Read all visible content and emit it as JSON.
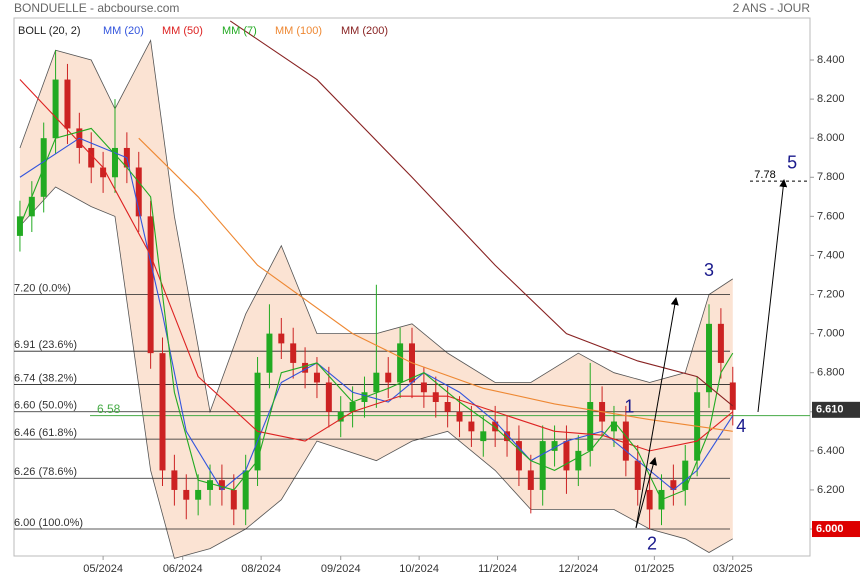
{
  "chart_data": {
    "type": "candlestick",
    "title": "BONDUELLE - abcbourse.com",
    "period": "2 ANS - JOUR",
    "xlim": [
      -0.5,
      66.5
    ],
    "xticks": [
      {
        "value": 7,
        "label": "05/2024"
      },
      {
        "value": 13.7,
        "label": "06/2024"
      },
      {
        "value": 20.3,
        "label": "08/2024"
      },
      {
        "value": 27,
        "label": "09/2024"
      },
      {
        "value": 33.6,
        "label": "10/2024"
      },
      {
        "value": 40.2,
        "label": "11/2024"
      },
      {
        "value": 47,
        "label": "12/2024"
      },
      {
        "value": 53.4,
        "label": "01/2025"
      },
      {
        "value": 60,
        "label": "03/2025"
      }
    ],
    "ylim": [
      5.862,
      8.615
    ],
    "yticks": [
      {
        "value": 6.0,
        "label": "6.000"
      },
      {
        "value": 6.2,
        "label": "6.200"
      },
      {
        "value": 6.4,
        "label": "6.400"
      },
      {
        "value": 6.6,
        "label": "6.600"
      },
      {
        "value": 6.8,
        "label": "6.800"
      },
      {
        "value": 7.0,
        "label": "7.000"
      },
      {
        "value": 7.2,
        "label": "7.200"
      },
      {
        "value": 7.4,
        "label": "7.400"
      },
      {
        "value": 7.6,
        "label": "7.600"
      },
      {
        "value": 7.8,
        "label": "7.800"
      },
      {
        "value": 8.0,
        "label": "8.000"
      },
      {
        "value": 8.2,
        "label": "8.200"
      },
      {
        "value": 8.4,
        "label": "8.400"
      }
    ],
    "up_color": "#22aa22",
    "down_color": "#cc2222",
    "candles": {
      "x": [
        0,
        1,
        2,
        3,
        4,
        5,
        6,
        7,
        8,
        9,
        10,
        11,
        12,
        13,
        14,
        15,
        16,
        17,
        18,
        19,
        20,
        21,
        22,
        23,
        24,
        25,
        26,
        27,
        28,
        29,
        30,
        31,
        32,
        33,
        34,
        35,
        36,
        37,
        38,
        39,
        40,
        41,
        42,
        43,
        44,
        45,
        46,
        47,
        48,
        49,
        50,
        51,
        52,
        53,
        54,
        55,
        56,
        57,
        58,
        59,
        60
      ],
      "open": [
        7.5,
        7.6,
        7.7,
        8.0,
        8.3,
        8.05,
        7.95,
        7.85,
        7.8,
        7.95,
        7.85,
        7.6,
        6.9,
        6.3,
        6.2,
        6.15,
        6.2,
        6.25,
        6.2,
        6.1,
        6.3,
        6.8,
        7.0,
        6.95,
        6.85,
        6.8,
        6.75,
        6.55,
        6.6,
        6.65,
        6.7,
        6.8,
        6.75,
        6.95,
        6.75,
        6.7,
        6.65,
        6.6,
        6.55,
        6.45,
        6.55,
        6.5,
        6.45,
        6.3,
        6.2,
        6.4,
        6.45,
        6.3,
        6.4,
        6.65,
        6.5,
        6.55,
        6.35,
        6.2,
        6.1,
        6.25,
        6.2,
        6.35,
        6.7,
        7.05,
        6.75
      ],
      "high": [
        7.68,
        7.78,
        8.08,
        8.45,
        8.38,
        8.13,
        8.03,
        7.93,
        8.2,
        8.03,
        7.93,
        7.68,
        6.98,
        6.38,
        6.28,
        6.28,
        6.33,
        6.33,
        6.28,
        6.38,
        6.88,
        7.15,
        7.08,
        7.03,
        6.93,
        6.88,
        6.83,
        6.68,
        6.73,
        6.78,
        7.25,
        6.88,
        7.03,
        7.03,
        6.83,
        6.78,
        6.73,
        6.68,
        6.63,
        6.58,
        6.63,
        6.58,
        6.53,
        6.38,
        6.53,
        6.53,
        6.53,
        6.48,
        6.85,
        6.73,
        6.63,
        6.63,
        6.43,
        6.28,
        6.28,
        6.33,
        6.43,
        6.78,
        7.15,
        7.13,
        6.83
      ],
      "low": [
        7.42,
        7.52,
        7.62,
        7.92,
        7.97,
        7.87,
        7.77,
        7.72,
        7.72,
        7.77,
        7.52,
        6.82,
        6.22,
        6.12,
        6.05,
        6.07,
        6.12,
        6.12,
        6.02,
        6.02,
        6.22,
        6.72,
        6.87,
        6.77,
        6.72,
        6.67,
        6.52,
        6.47,
        6.52,
        6.57,
        6.62,
        6.67,
        6.67,
        6.67,
        6.62,
        6.57,
        6.52,
        6.47,
        6.42,
        6.37,
        6.42,
        6.37,
        6.22,
        6.08,
        6.12,
        6.32,
        6.18,
        6.22,
        6.32,
        6.47,
        6.42,
        6.27,
        6.12,
        6.0,
        6.02,
        6.12,
        6.12,
        6.27,
        6.62,
        6.77,
        6.53
      ],
      "close": [
        7.6,
        7.7,
        8.0,
        8.3,
        8.05,
        7.95,
        7.85,
        7.8,
        7.95,
        7.85,
        7.6,
        6.9,
        6.3,
        6.2,
        6.15,
        6.2,
        6.25,
        6.2,
        6.1,
        6.3,
        6.8,
        7.0,
        6.95,
        6.85,
        6.8,
        6.75,
        6.6,
        6.6,
        6.65,
        6.7,
        6.8,
        6.75,
        6.95,
        6.75,
        6.7,
        6.65,
        6.6,
        6.55,
        6.5,
        6.5,
        6.5,
        6.45,
        6.3,
        6.2,
        6.45,
        6.45,
        6.3,
        6.4,
        6.65,
        6.55,
        6.55,
        6.35,
        6.2,
        6.1,
        6.2,
        6.2,
        6.35,
        6.7,
        7.05,
        6.85,
        6.61
      ]
    },
    "bands": {
      "name": "BOLL (20, 2)",
      "color": "#222222",
      "fill": "#fbe3d3",
      "x": [
        0,
        3,
        6,
        8,
        11,
        13,
        16,
        19,
        22,
        25,
        30,
        33,
        36,
        40,
        43,
        47,
        50,
        53,
        56,
        58,
        60
      ],
      "upper": [
        7.95,
        8.45,
        8.4,
        8.15,
        8.5,
        7.6,
        6.6,
        7.1,
        7.45,
        7.0,
        7.0,
        7.05,
        6.9,
        6.75,
        6.75,
        6.9,
        6.8,
        6.75,
        6.8,
        7.2,
        7.28
      ],
      "lower": [
        7.55,
        7.75,
        7.65,
        7.6,
        6.3,
        5.85,
        5.9,
        6.0,
        6.15,
        6.45,
        6.35,
        6.45,
        6.5,
        6.3,
        6.1,
        6.1,
        6.1,
        6.0,
        5.95,
        5.88,
        5.95
      ]
    },
    "series": [
      {
        "name": "MM (20)",
        "color": "#3355dd",
        "x": [
          0,
          5,
          9,
          12,
          14,
          17,
          19,
          22,
          25,
          28,
          31,
          34,
          37,
          40,
          43,
          46,
          49,
          52,
          55,
          57,
          60
        ],
        "values": [
          7.8,
          8.0,
          7.9,
          7.1,
          6.5,
          6.2,
          6.3,
          6.75,
          6.85,
          6.7,
          6.65,
          6.8,
          6.7,
          6.55,
          6.35,
          6.45,
          6.5,
          6.35,
          6.2,
          6.3,
          6.58
        ]
      },
      {
        "name": "MM (50)",
        "color": "#dd2222",
        "x": [
          0,
          7,
          11,
          15,
          20,
          24,
          28,
          32,
          36,
          40,
          45,
          49,
          53,
          57,
          60
        ],
        "values": [
          8.3,
          7.85,
          7.4,
          6.78,
          6.5,
          6.45,
          6.6,
          6.68,
          6.68,
          6.6,
          6.5,
          6.48,
          6.4,
          6.45,
          6.6
        ]
      },
      {
        "name": "MM (7)",
        "color": "#22aa22",
        "x": [
          0,
          3,
          6,
          9,
          11,
          13,
          15,
          18,
          20,
          22,
          25,
          28,
          31,
          34,
          37,
          40,
          43,
          45,
          48,
          50,
          52,
          54,
          56,
          58,
          59,
          60
        ],
        "values": [
          7.55,
          8.0,
          8.05,
          7.85,
          7.7,
          6.7,
          6.25,
          6.2,
          6.35,
          6.8,
          6.85,
          6.65,
          6.72,
          6.8,
          6.65,
          6.52,
          6.35,
          6.3,
          6.4,
          6.55,
          6.4,
          6.15,
          6.2,
          6.5,
          6.8,
          6.9
        ]
      },
      {
        "name": "MM (100)",
        "color": "#ee8833",
        "x": [
          10,
          15,
          20,
          28,
          33,
          39,
          45,
          53,
          60
        ],
        "values": [
          8.0,
          7.7,
          7.35,
          7.0,
          6.85,
          6.72,
          6.64,
          6.56,
          6.5
        ]
      },
      {
        "name": "MM (200)",
        "color": "#882222",
        "x": [
          17.7,
          25,
          33,
          40,
          46,
          52,
          57,
          60
        ],
        "values": [
          8.6,
          8.3,
          7.8,
          7.35,
          7.0,
          6.86,
          6.78,
          6.63
        ]
      }
    ],
    "fib_levels": [
      {
        "value": 7.2,
        "label": "7.20 (0.0%)"
      },
      {
        "value": 6.91,
        "label": "6.91 (23.6%)"
      },
      {
        "value": 6.74,
        "label": "6.74 (38.2%)"
      },
      {
        "value": 6.6,
        "label": "6.60 (50.0%)"
      },
      {
        "value": 6.46,
        "label": "6.46 (61.8%)"
      },
      {
        "value": 6.26,
        "label": "6.26 (78.6%)"
      },
      {
        "value": 6.0,
        "label": "6.00 (100.0%)"
      }
    ],
    "support": {
      "value": 6.58,
      "label": "6.58",
      "color": "#44aa44"
    },
    "target": {
      "value": 7.78,
      "label": "7.78"
    },
    "annotations": [
      {
        "text": "1",
        "x": 51.3,
        "y": 6.62
      },
      {
        "text": "2",
        "x": 53.2,
        "y": 5.92
      },
      {
        "text": "3",
        "x": 58.0,
        "y": 7.32
      },
      {
        "text": "4",
        "x": 60.7,
        "y": 6.52
      },
      {
        "text": "5",
        "x": 65.0,
        "y": 7.87
      }
    ],
    "price_tags": [
      {
        "value": 6.61,
        "label": "6.610",
        "color": "#333333"
      },
      {
        "value": 6.0,
        "label": "6.000",
        "color": "#dd0000"
      }
    ]
  }
}
